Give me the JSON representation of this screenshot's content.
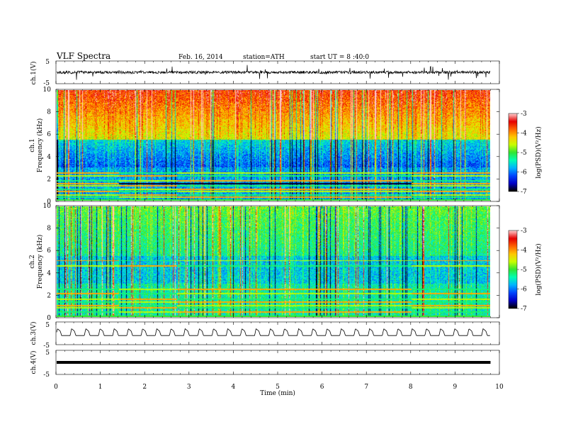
{
  "header": {
    "title": "VLF Spectra",
    "date": "Feb. 16, 2014",
    "station": "station=ATH",
    "start": "start UT = 8 :40:0"
  },
  "chart_data": [
    {
      "id": "ch1-waveform",
      "type": "line",
      "ylabel": "ch.1(V)",
      "ylim": [
        -5,
        5
      ],
      "yticks": [
        "5",
        "-5"
      ],
      "xlim": [
        0,
        10
      ],
      "description_values": {
        "baseline": 0,
        "noise_amplitude": 1.2,
        "spike_amplitude": 3
      }
    },
    {
      "id": "ch1-spectrogram",
      "type": "heatmap",
      "ylabel": "ch.1\nFrequency (kHz)",
      "ylabel_lines": [
        "ch.1",
        "Frequency (kHz)"
      ],
      "ylim": [
        0,
        10
      ],
      "yticks": [
        "0",
        "2",
        "4",
        "6",
        "8",
        "10"
      ],
      "xlim": [
        0,
        9.8
      ],
      "colorbar": {
        "label": "log(PSD)(V²/Hz)",
        "range": [
          -7,
          -3
        ],
        "ticks": [
          "-3",
          "-4",
          "-5",
          "-6",
          "-7"
        ]
      },
      "bands_khz": [
        0.3,
        0.5,
        0.8,
        1.0,
        1.3,
        1.5,
        1.8,
        2.2,
        2.5
      ],
      "band_shift_times_min": [
        1.4,
        2.7,
        8.0
      ]
    },
    {
      "id": "ch2-spectrogram",
      "type": "heatmap",
      "ylabel": "ch.2\nFrequency (kHz)",
      "ylabel_lines": [
        "ch.2",
        "Frequency (kHz)"
      ],
      "ylim": [
        0,
        10
      ],
      "yticks": [
        "0",
        "2",
        "4",
        "6",
        "8",
        "10"
      ],
      "xlim": [
        0,
        9.8
      ],
      "colorbar": {
        "label": "log(PSD)(V²/Hz)",
        "range": [
          -7,
          -3
        ],
        "ticks": [
          "-3",
          "-4",
          "-5",
          "-6",
          "-7"
        ]
      },
      "bands_khz": [
        0.4,
        0.8,
        1.0,
        1.3,
        1.6,
        2.1,
        2.5,
        4.6,
        5.1
      ],
      "band_shift_times_min": [
        1.4,
        2.7,
        8.0
      ]
    },
    {
      "id": "ch3-waveform",
      "type": "line",
      "ylabel": "ch.3(V)",
      "ylim": [
        -5,
        5
      ],
      "yticks": [
        "5",
        "-5"
      ],
      "xlim": [
        0,
        9.8
      ],
      "description_values": {
        "period_min": 0.32,
        "high": 2.0,
        "low": -1.0
      }
    },
    {
      "id": "ch4-waveform",
      "type": "line",
      "ylabel": "ch.4(V)",
      "ylim": [
        -5,
        5
      ],
      "yticks": [
        "5",
        "-5"
      ],
      "xlim": [
        0,
        9.8
      ],
      "xlabel": "Time (min)",
      "xticks": [
        "0",
        "1",
        "2",
        "3",
        "4",
        "5",
        "6",
        "7",
        "8",
        "9",
        "10"
      ],
      "description_values": {
        "level": 0
      }
    }
  ],
  "colors": {
    "colormap": [
      "#000000",
      "#0000c8",
      "#0046ff",
      "#00b4ff",
      "#00ffb4",
      "#32e632",
      "#c8ff00",
      "#ffc800",
      "#ff6400",
      "#e60000",
      "#ffc8c8"
    ]
  }
}
